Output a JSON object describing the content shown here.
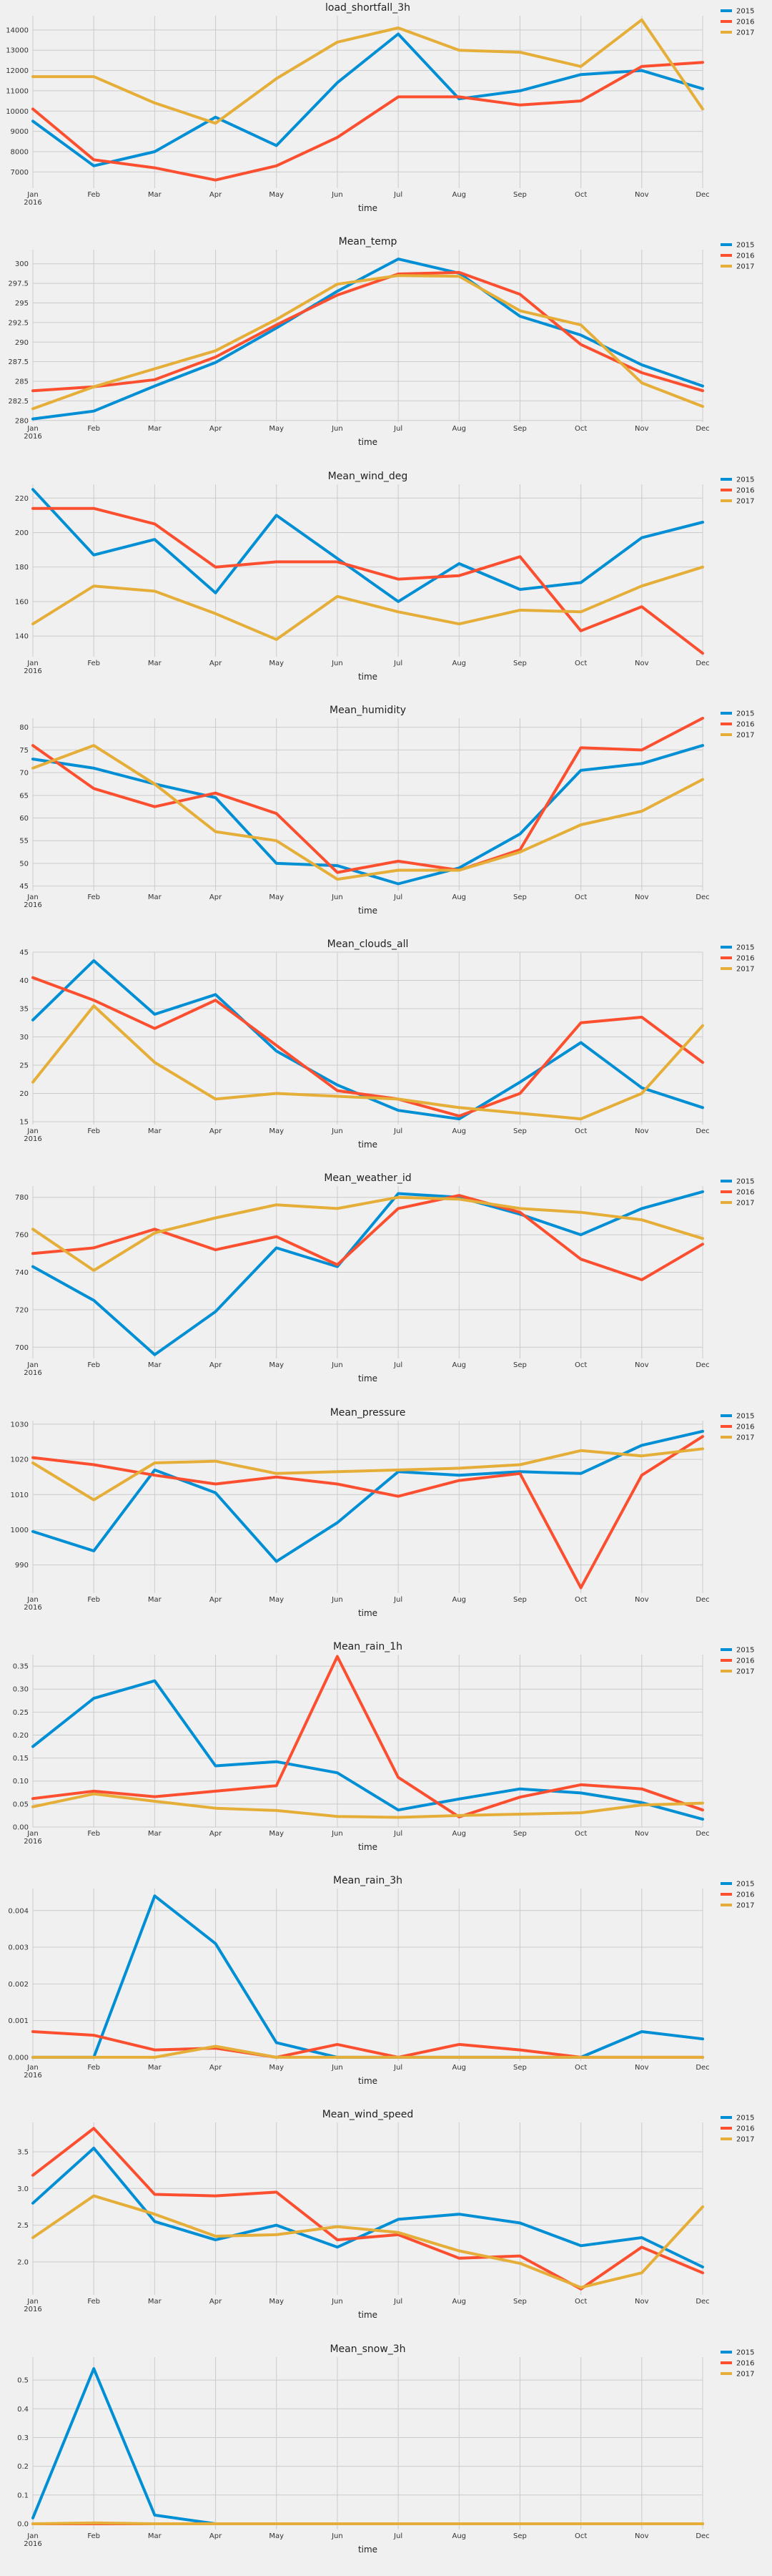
{
  "colors": {
    "2015": "#008fd5",
    "2016": "#fc4f30",
    "2017": "#e5ae38",
    "background": "#f0f0f0",
    "grid": "#cbcbcb"
  },
  "chart_data": [
    {
      "type": "line",
      "title": "load_shortfall_3h",
      "xlabel": "time",
      "year_label": "2016",
      "legend_position": "top-right (outside)",
      "grid": true,
      "categories": [
        "Jan",
        "Feb",
        "Mar",
        "Apr",
        "May",
        "Jun",
        "Jul",
        "Aug",
        "Sep",
        "Oct",
        "Nov",
        "Dec"
      ],
      "ylim": [
        6200,
        14700
      ],
      "yticks": [
        7000,
        8000,
        9000,
        10000,
        11000,
        12000,
        13000,
        14000
      ],
      "series": [
        {
          "name": "2015",
          "color": "#008fd5",
          "values": [
            9500,
            7300,
            8000,
            9700,
            8300,
            11400,
            13800,
            10600,
            11000,
            11800,
            12000,
            11100
          ]
        },
        {
          "name": "2016",
          "color": "#fc4f30",
          "values": [
            10100,
            7600,
            7200,
            6600,
            7300,
            8700,
            10700,
            10700,
            10300,
            10500,
            12200,
            12400
          ]
        },
        {
          "name": "2017",
          "color": "#e5ae38",
          "values": [
            11700,
            11700,
            10400,
            9400,
            11600,
            13400,
            14100,
            13000,
            12900,
            12200,
            14500,
            10100
          ]
        }
      ]
    },
    {
      "type": "line",
      "title": "Mean_temp",
      "xlabel": "time",
      "year_label": "2016",
      "legend_position": "top-right (outside)",
      "grid": true,
      "categories": [
        "Jan",
        "Feb",
        "Mar",
        "Apr",
        "May",
        "Jun",
        "Jul",
        "Aug",
        "Sep",
        "Oct",
        "Nov",
        "Dec"
      ],
      "ylim": [
        279.8,
        301.8
      ],
      "yticks": [
        280.0,
        282.5,
        285.0,
        287.5,
        290.0,
        292.5,
        295.0,
        297.5,
        300.0
      ],
      "series": [
        {
          "name": "2015",
          "color": "#008fd5",
          "values": [
            280.2,
            281.2,
            284.4,
            287.4,
            291.8,
            296.5,
            300.6,
            298.8,
            293.3,
            290.9,
            287.1,
            284.4
          ]
        },
        {
          "name": "2016",
          "color": "#fc4f30",
          "values": [
            283.8,
            284.3,
            285.2,
            288.1,
            292.2,
            296.0,
            298.7,
            298.9,
            296.1,
            289.7,
            286.1,
            283.8
          ]
        },
        {
          "name": "2017",
          "color": "#e5ae38",
          "values": [
            281.5,
            284.3,
            286.6,
            288.9,
            292.9,
            297.4,
            298.5,
            298.4,
            294.0,
            292.2,
            284.8,
            281.8
          ]
        }
      ]
    },
    {
      "type": "line",
      "title": "Mean_wind_deg",
      "xlabel": "time",
      "year_label": "2016",
      "legend_position": "top-right (outside)",
      "grid": true,
      "categories": [
        "Jan",
        "Feb",
        "Mar",
        "Apr",
        "May",
        "Jun",
        "Jul",
        "Aug",
        "Sep",
        "Oct",
        "Nov",
        "Dec"
      ],
      "ylim": [
        128,
        228
      ],
      "yticks": [
        140,
        160,
        180,
        200,
        220
      ],
      "series": [
        {
          "name": "2015",
          "color": "#008fd5",
          "values": [
            225,
            187,
            196,
            165,
            210,
            185,
            160,
            182,
            167,
            171,
            197,
            206
          ]
        },
        {
          "name": "2016",
          "color": "#fc4f30",
          "values": [
            214,
            214,
            205,
            180,
            183,
            183,
            173,
            175,
            186,
            143,
            157,
            130
          ]
        },
        {
          "name": "2017",
          "color": "#e5ae38",
          "values": [
            147,
            169,
            166,
            153,
            138,
            163,
            154,
            147,
            155,
            154,
            169,
            180
          ]
        }
      ]
    },
    {
      "type": "line",
      "title": "Mean_humidity",
      "xlabel": "time",
      "year_label": "2016",
      "legend_position": "top-right (outside)",
      "grid": true,
      "categories": [
        "Jan",
        "Feb",
        "Mar",
        "Apr",
        "May",
        "Jun",
        "Jul",
        "Aug",
        "Sep",
        "Oct",
        "Nov",
        "Dec"
      ],
      "ylim": [
        44,
        82
      ],
      "yticks": [
        45,
        50,
        55,
        60,
        65,
        70,
        75,
        80
      ],
      "series": [
        {
          "name": "2015",
          "color": "#008fd5",
          "values": [
            73,
            71,
            67.5,
            64.5,
            50,
            49.5,
            45.5,
            49,
            56.5,
            70.5,
            72,
            76
          ]
        },
        {
          "name": "2016",
          "color": "#fc4f30",
          "values": [
            76,
            66.5,
            62.5,
            65.5,
            61,
            48,
            50.5,
            48.5,
            53,
            75.5,
            75,
            82
          ]
        },
        {
          "name": "2017",
          "color": "#e5ae38",
          "values": [
            71,
            76,
            67.5,
            57,
            55,
            46.5,
            48.5,
            48.5,
            52.5,
            58.5,
            61.5,
            68.5
          ]
        }
      ]
    },
    {
      "type": "line",
      "title": "Mean_clouds_all",
      "xlabel": "time",
      "year_label": "2016",
      "legend_position": "top-right (outside)",
      "grid": true,
      "categories": [
        "Jan",
        "Feb",
        "Mar",
        "Apr",
        "May",
        "Jun",
        "Jul",
        "Aug",
        "Sep",
        "Oct",
        "Nov",
        "Dec"
      ],
      "ylim": [
        14.5,
        45
      ],
      "yticks": [
        15,
        20,
        25,
        30,
        35,
        40,
        45
      ],
      "series": [
        {
          "name": "2015",
          "color": "#008fd5",
          "values": [
            33,
            43.5,
            34,
            37.5,
            27.5,
            21.5,
            17,
            15.5,
            22,
            29,
            21,
            17.5
          ]
        },
        {
          "name": "2016",
          "color": "#fc4f30",
          "values": [
            40.5,
            36.5,
            31.5,
            36.5,
            28.5,
            20.5,
            19,
            16,
            20,
            32.5,
            33.5,
            25.5
          ]
        },
        {
          "name": "2017",
          "color": "#e5ae38",
          "values": [
            22,
            35.5,
            25.5,
            19,
            20,
            19.5,
            19,
            17.5,
            16.5,
            15.5,
            20,
            32
          ]
        }
      ]
    },
    {
      "type": "line",
      "title": "Mean_weather_id",
      "xlabel": "time",
      "year_label": "2016",
      "legend_position": "top-right (outside)",
      "grid": true,
      "categories": [
        "Jan",
        "Feb",
        "Mar",
        "Apr",
        "May",
        "Jun",
        "Jul",
        "Aug",
        "Sep",
        "Oct",
        "Nov",
        "Dec"
      ],
      "ylim": [
        694,
        786
      ],
      "yticks": [
        700,
        720,
        740,
        760,
        780
      ],
      "series": [
        {
          "name": "2015",
          "color": "#008fd5",
          "values": [
            743,
            725,
            696,
            719,
            753,
            743,
            782,
            780,
            771,
            760,
            774,
            783
          ]
        },
        {
          "name": "2016",
          "color": "#fc4f30",
          "values": [
            750,
            753,
            763,
            752,
            759,
            744,
            774,
            781,
            772,
            747,
            736,
            755
          ]
        },
        {
          "name": "2017",
          "color": "#e5ae38",
          "values": [
            763,
            741,
            761,
            769,
            776,
            774,
            780,
            779,
            774,
            772,
            768,
            758
          ]
        }
      ]
    },
    {
      "type": "line",
      "title": "Mean_pressure",
      "xlabel": "time",
      "year_label": "2016",
      "legend_position": "top-right (outside)",
      "grid": true,
      "categories": [
        "Jan",
        "Feb",
        "Mar",
        "Apr",
        "May",
        "Jun",
        "Jul",
        "Aug",
        "Sep",
        "Oct",
        "Nov",
        "Dec"
      ],
      "ylim": [
        982,
        1031
      ],
      "yticks": [
        990,
        1000,
        1010,
        1020,
        1030
      ],
      "series": [
        {
          "name": "2015",
          "color": "#008fd5",
          "values": [
            999.5,
            994,
            1017,
            1010.5,
            991,
            1002,
            1016.5,
            1015.5,
            1016.5,
            1016,
            1024,
            1028
          ]
        },
        {
          "name": "2016",
          "color": "#fc4f30",
          "values": [
            1020.5,
            1018.5,
            1015.5,
            1013,
            1015,
            1013,
            1009.5,
            1014,
            1016,
            983.5,
            1015.5,
            1026.5
          ]
        },
        {
          "name": "2017",
          "color": "#e5ae38",
          "values": [
            1019,
            1008.5,
            1019,
            1019.5,
            1016,
            1016.5,
            1017,
            1017.5,
            1018.5,
            1022.5,
            1021,
            1023
          ]
        }
      ]
    },
    {
      "type": "line",
      "title": "Mean_rain_1h",
      "xlabel": "time",
      "year_label": "2016",
      "legend_position": "top-right (outside)",
      "grid": true,
      "categories": [
        "Jan",
        "Feb",
        "Mar",
        "Apr",
        "May",
        "Jun",
        "Jul",
        "Aug",
        "Sep",
        "Oct",
        "Nov",
        "Dec"
      ],
      "ylim": [
        0,
        0.375
      ],
      "yticks": [
        0.0,
        0.05,
        0.1,
        0.15,
        0.2,
        0.25,
        0.3,
        0.35
      ],
      "ytick_labels": [
        "0.00",
        "0.05",
        "0.10",
        "0.15",
        "0.20",
        "0.25",
        "0.30",
        "0.35"
      ],
      "series": [
        {
          "name": "2015",
          "color": "#008fd5",
          "values": [
            0.175,
            0.28,
            0.318,
            0.133,
            0.142,
            0.118,
            0.037,
            0.061,
            0.083,
            0.074,
            0.053,
            0.017
          ]
        },
        {
          "name": "2016",
          "color": "#fc4f30",
          "values": [
            0.062,
            0.078,
            0.066,
            0.078,
            0.09,
            0.371,
            0.108,
            0.022,
            0.065,
            0.092,
            0.083,
            0.037
          ]
        },
        {
          "name": "2017",
          "color": "#e5ae38",
          "values": [
            0.044,
            0.072,
            0.056,
            0.041,
            0.036,
            0.023,
            0.021,
            0.025,
            0.028,
            0.031,
            0.048,
            0.052
          ]
        }
      ]
    },
    {
      "type": "line",
      "title": "Mean_rain_3h",
      "xlabel": "time",
      "year_label": "2016",
      "legend_position": "top-right (outside)",
      "grid": true,
      "categories": [
        "Jan",
        "Feb",
        "Mar",
        "Apr",
        "May",
        "Jun",
        "Jul",
        "Aug",
        "Sep",
        "Oct",
        "Nov",
        "Dec"
      ],
      "ylim": [
        -0.0001,
        0.0046
      ],
      "yticks": [
        0.0,
        0.001,
        0.002,
        0.003,
        0.004
      ],
      "ytick_labels": [
        "0.000",
        "0.001",
        "0.002",
        "0.003",
        "0.004"
      ],
      "series": [
        {
          "name": "2015",
          "color": "#008fd5",
          "values": [
            0,
            0,
            0.0044,
            0.0031,
            0.0004,
            0,
            0,
            0,
            0,
            0,
            0.0007,
            0.0005
          ]
        },
        {
          "name": "2016",
          "color": "#fc4f30",
          "values": [
            0.0007,
            0.0006,
            0.0002,
            0.00025,
            0,
            0.00035,
            0,
            0.00035,
            0.0002,
            0,
            0,
            0
          ]
        },
        {
          "name": "2017",
          "color": "#e5ae38",
          "values": [
            0,
            0,
            0,
            0.0003,
            0,
            0,
            0,
            0,
            0,
            0,
            0,
            0
          ]
        }
      ]
    },
    {
      "type": "line",
      "title": "Mean_wind_speed",
      "xlabel": "time",
      "year_label": "2016",
      "legend_position": "top-right (outside)",
      "grid": true,
      "categories": [
        "Jan",
        "Feb",
        "Mar",
        "Apr",
        "May",
        "Jun",
        "Jul",
        "Aug",
        "Sep",
        "Oct",
        "Nov",
        "Dec"
      ],
      "ylim": [
        1.55,
        3.9
      ],
      "yticks": [
        2.0,
        2.5,
        3.0,
        3.5
      ],
      "ytick_labels": [
        "2.0",
        "2.5",
        "3.0",
        "3.5"
      ],
      "series": [
        {
          "name": "2015",
          "color": "#008fd5",
          "values": [
            2.8,
            3.55,
            2.55,
            2.3,
            2.5,
            2.2,
            2.58,
            2.65,
            2.53,
            2.22,
            2.33,
            1.93
          ]
        },
        {
          "name": "2016",
          "color": "#fc4f30",
          "values": [
            3.18,
            3.82,
            2.92,
            2.9,
            2.95,
            2.3,
            2.37,
            2.05,
            2.08,
            1.63,
            2.2,
            1.85
          ]
        },
        {
          "name": "2017",
          "color": "#e5ae38",
          "values": [
            2.33,
            2.9,
            2.65,
            2.35,
            2.37,
            2.48,
            2.4,
            2.15,
            1.98,
            1.65,
            1.85,
            2.75
          ]
        }
      ]
    },
    {
      "type": "line",
      "title": "Mean_snow_3h",
      "xlabel": "time",
      "year_label": "2016",
      "legend_position": "top-right (outside)",
      "grid": true,
      "categories": [
        "Jan",
        "Feb",
        "Mar",
        "Apr",
        "May",
        "Jun",
        "Jul",
        "Aug",
        "Sep",
        "Oct",
        "Nov",
        "Dec"
      ],
      "ylim": [
        -0.02,
        0.58
      ],
      "yticks": [
        0.0,
        0.1,
        0.2,
        0.3,
        0.4,
        0.5
      ],
      "ytick_labels": [
        "0.0",
        "0.1",
        "0.2",
        "0.3",
        "0.4",
        "0.5"
      ],
      "series": [
        {
          "name": "2015",
          "color": "#008fd5",
          "values": [
            0.02,
            0.54,
            0.03,
            0,
            0,
            0,
            0,
            0,
            0,
            0,
            0,
            0
          ]
        },
        {
          "name": "2016",
          "color": "#fc4f30",
          "values": [
            0,
            0,
            0,
            0,
            0,
            0,
            0,
            0,
            0,
            0,
            0,
            0
          ]
        },
        {
          "name": "2017",
          "color": "#e5ae38",
          "values": [
            0,
            0.003,
            0,
            0,
            0,
            0,
            0,
            0,
            0,
            0,
            0,
            0
          ]
        }
      ]
    }
  ]
}
